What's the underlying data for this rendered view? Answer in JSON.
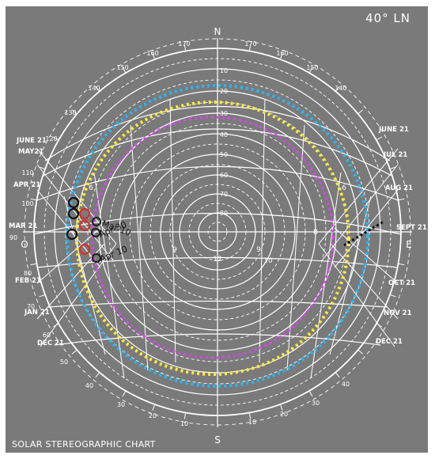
{
  "latitude_label": "40° LN",
  "footer_label": "SOLAR STEREOGRAPHIC CHART",
  "cardinals": {
    "north": "N",
    "south": "S",
    "east": "E",
    "west": "O"
  },
  "left_months": [
    "JUNE 21",
    "MAY21",
    "APR 21",
    "MAR 21",
    "FEB 21",
    "JAN 21",
    "DEC 21"
  ],
  "right_months": [
    "JUNE 21",
    "JUL 21",
    "AUG 21",
    "SEPT 21",
    "OCT 21",
    "NOV 21",
    "DEC 21"
  ],
  "azimuth_labels": [
    "10",
    "20",
    "30",
    "40",
    "50",
    "60",
    "70",
    "80",
    "90",
    "100",
    "110",
    "120",
    "130",
    "140",
    "150",
    "160",
    "170"
  ],
  "altitude_labels": [
    "10",
    "20",
    "30",
    "40",
    "50",
    "60",
    "70",
    "80"
  ],
  "hour_labels": [
    "6",
    "7",
    "8",
    "9",
    "10",
    "11",
    "12"
  ],
  "markers": [
    "Mar 10",
    "Apr 30",
    "Apr 10"
  ],
  "ring_colors": {
    "cyan": "#29b6f6",
    "yellow": "#ffeb3b",
    "magenta": "#e040fb"
  }
}
